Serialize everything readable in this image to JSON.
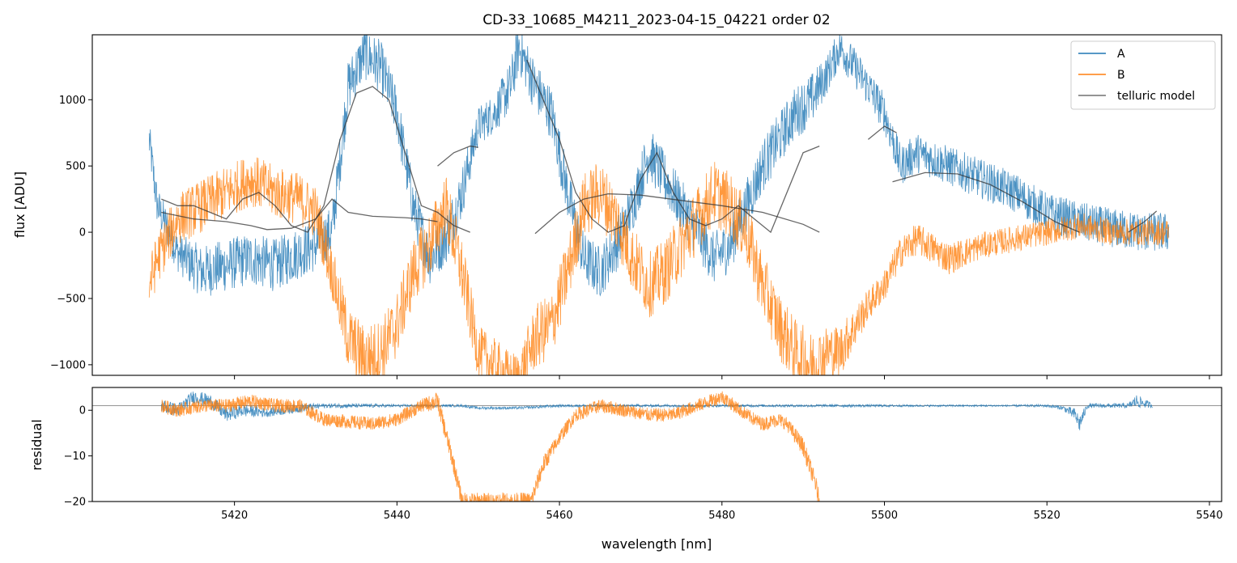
{
  "colors": {
    "A": "#1f77b4",
    "B": "#ff7f0e",
    "telluric": "#333333"
  },
  "chart_data": {
    "type": "line",
    "title": "CD-33_10685_M4211_2023-04-15_04221  order 02",
    "xlabel": "wavelength [nm]",
    "xlim": [
      5402.5,
      5541.5
    ],
    "xticks": [
      5420,
      5440,
      5460,
      5480,
      5500,
      5520,
      5540
    ],
    "legend_position": "top-right",
    "panels": [
      {
        "id": "flux",
        "ylabel": "flux [ADU]",
        "ylim": [
          -1080,
          1490
        ],
        "yticks": [
          1000,
          500,
          0,
          -500,
          -1000
        ],
        "ytick_labels": [
          "1000",
          "500",
          "0",
          "−500",
          "−1000"
        ],
        "series": [
          {
            "name": "A",
            "label": "A",
            "x": [
              5409.5,
              5410.5,
              5413,
              5416,
              5419,
              5422,
              5425,
              5428,
              5430,
              5432,
              5434,
              5436,
              5438,
              5440,
              5442,
              5444,
              5446,
              5448,
              5450,
              5452,
              5454,
              5455,
              5457,
              5459,
              5461,
              5463,
              5465,
              5467,
              5469,
              5471,
              5473,
              5475,
              5477,
              5479,
              5481,
              5483,
              5485,
              5487,
              5489,
              5491,
              5493,
              5494.5,
              5498,
              5500,
              5502,
              5504,
              5508,
              5512,
              5516,
              5520,
              5524,
              5528,
              5532,
              5535
            ],
            "y": [
              700,
              200,
              -150,
              -300,
              -250,
              -200,
              -250,
              -150,
              -100,
              0,
              1100,
              1350,
              1250,
              900,
              200,
              -200,
              -50,
              300,
              800,
              900,
              1100,
              1400,
              1100,
              900,
              300,
              -200,
              -300,
              -100,
              200,
              600,
              400,
              200,
              0,
              -200,
              -100,
              200,
              500,
              700,
              900,
              1000,
              1200,
              1400,
              1100,
              900,
              500,
              600,
              500,
              400,
              300,
              150,
              80,
              30,
              0,
              0
            ],
            "noise": [
              150,
              150,
              150,
              200,
              200,
              200,
              200,
              200,
              200,
              200,
              200,
              200,
              200,
              200,
              200,
              200,
              200,
              200,
              150,
              150,
              200,
              200,
              200,
              200,
              200,
              200,
              200,
              200,
              200,
              200,
              200,
              200,
              200,
              200,
              200,
              200,
              200,
              200,
              200,
              200,
              150,
              150,
              150,
              150,
              150,
              150,
              150,
              150,
              150,
              150,
              150,
              150,
              150,
              150
            ]
          },
          {
            "name": "B",
            "label": "B",
            "x": [
              5409.5,
              5410.5,
              5413,
              5416,
              5419,
              5422,
              5425,
              5428,
              5430,
              5432,
              5434,
              5436,
              5438,
              5440,
              5442,
              5444,
              5446,
              5448,
              5450,
              5452,
              5454,
              5455,
              5457,
              5459,
              5461,
              5463,
              5465,
              5467,
              5469,
              5471,
              5473,
              5475,
              5477,
              5479,
              5481,
              5483,
              5485,
              5487,
              5489,
              5491,
              5493,
              5494.5,
              5498,
              5500,
              5502,
              5504,
              5508,
              5512,
              5516,
              5520,
              5524,
              5528,
              5532,
              5535
            ],
            "y": [
              -400,
              -200,
              100,
              200,
              300,
              400,
              300,
              250,
              150,
              -300,
              -800,
              -950,
              -900,
              -700,
              -300,
              -100,
              200,
              -300,
              -900,
              -1000,
              -1100,
              -1100,
              -800,
              -700,
              -300,
              200,
              300,
              100,
              -200,
              -400,
              -300,
              -100,
              100,
              300,
              200,
              0,
              -400,
              -700,
              -900,
              -1000,
              -900,
              -900,
              -550,
              -400,
              -150,
              -50,
              -200,
              -100,
              -50,
              0,
              50,
              0,
              0,
              0
            ],
            "noise": [
              200,
              200,
              200,
              200,
              200,
              200,
              200,
              200,
              200,
              200,
              250,
              250,
              250,
              250,
              250,
              250,
              250,
              250,
              200,
              200,
              200,
              200,
              250,
              250,
              250,
              250,
              250,
              250,
              250,
              250,
              250,
              250,
              250,
              250,
              250,
              250,
              250,
              250,
              250,
              250,
              200,
              200,
              120,
              120,
              120,
              120,
              120,
              100,
              100,
              100,
              100,
              100,
              100,
              100
            ]
          }
        ],
        "model": {
          "name": "telluric model",
          "label": "telluric model",
          "segments": [
            {
              "x": [
                5411,
                5413,
                5415,
                5417,
                5419,
                5421,
                5423,
                5425,
                5427,
                5429,
                5431,
                5433,
                5435,
                5437,
                5439,
                5441,
                5443,
                5445,
                5447,
                5449
              ],
              "y": [
                250,
                200,
                200,
                150,
                100,
                250,
                300,
                200,
                50,
                0,
                200,
                700,
                1050,
                1100,
                1000,
                600,
                200,
                150,
                50,
                0
              ]
            },
            {
              "x": [
                5411,
                5415,
                5419,
                5422,
                5424,
                5427,
                5430,
                5432,
                5434,
                5437,
                5441,
                5443,
                5445
              ],
              "y": [
                150,
                100,
                80,
                50,
                20,
                30,
                100,
                250,
                150,
                120,
                110,
                100,
                80
              ]
            },
            {
              "x": [
                5445,
                5447,
                5449,
                5450
              ],
              "y": [
                500,
                600,
                650,
                640
              ]
            },
            {
              "x": [
                5456,
                5458,
                5460,
                5462,
                5464,
                5466,
                5468,
                5470,
                5472,
                5474,
                5476,
                5478,
                5480,
                5482,
                5484,
                5486,
                5488,
                5490,
                5492
              ],
              "y": [
                1300,
                1000,
                700,
                300,
                100,
                0,
                50,
                400,
                600,
                300,
                100,
                50,
                100,
                200,
                100,
                0,
                300,
                600,
                650
              ]
            },
            {
              "x": [
                5457,
                5460,
                5463,
                5466,
                5470,
                5475,
                5480,
                5485,
                5490,
                5492
              ],
              "y": [
                -10,
                150,
                250,
                290,
                280,
                240,
                200,
                150,
                60,
                0
              ]
            },
            {
              "x": [
                5498,
                5500,
                5501.5
              ],
              "y": [
                700,
                800,
                750
              ]
            },
            {
              "x": [
                5501,
                5505,
                5509,
                5513,
                5517,
                5521,
                5524
              ],
              "y": [
                380,
                450,
                440,
                360,
                230,
                80,
                0
              ]
            },
            {
              "x": [
                5530,
                5532,
                5533.5
              ],
              "y": [
                0,
                80,
                160
              ]
            }
          ]
        }
      },
      {
        "id": "residual",
        "ylabel": "residual",
        "ylim": [
          -20,
          5
        ],
        "yticks": [
          0,
          -10,
          -20
        ],
        "ytick_labels": [
          "0",
          "−10",
          "−20"
        ],
        "reference_y": 1,
        "series": [
          {
            "name": "A",
            "x": [
              5411,
              5413,
              5415,
              5417,
              5419,
              5421,
              5424,
              5428,
              5431,
              5434,
              5440,
              5446,
              5448,
              5450,
              5455,
              5460,
              5465,
              5470,
              5475,
              5480,
              5485,
              5490,
              5492.5,
              5498,
              5505,
              5510,
              5515,
              5520,
              5522,
              5523.5,
              5524,
              5525,
              5530,
              5531,
              5533
            ],
            "y": [
              1,
              0,
              3,
              2,
              -1,
              0,
              -0.5,
              0.5,
              1,
              1,
              1,
              1,
              1,
              0.5,
              0.5,
              1,
              1,
              1,
              1,
              1,
              1,
              1,
              1,
              1,
              1,
              1,
              1,
              1,
              0.5,
              -1,
              -3,
              1,
              1,
              2,
              1
            ],
            "noise": [
              1.5,
              1.5,
              1.5,
              1.5,
              1.5,
              1.5,
              1,
              1,
              0.5,
              0.5,
              0.3,
              0.3,
              0.3,
              0.3,
              0.3,
              0.3,
              0.3,
              0.3,
              0.3,
              0.3,
              0.3,
              0.3,
              0.3,
              0.3,
              0.2,
              0.2,
              0.2,
              0.3,
              0.5,
              1.5,
              2,
              0.5,
              0.5,
              1.5,
              0.5
            ]
          },
          {
            "name": "B",
            "x": [
              5411,
              5413,
              5416,
              5419,
              5422,
              5425,
              5428,
              5431,
              5434,
              5437,
              5440,
              5443,
              5445,
              5446,
              5447,
              5448,
              5456.5,
              5458,
              5460,
              5462,
              5465,
              5468,
              5471,
              5474,
              5477,
              5480,
              5483,
              5485,
              5487,
              5488,
              5490,
              5491.5,
              5492
            ],
            "y": [
              1,
              0,
              1,
              1,
              2,
              1,
              1,
              -2,
              -2.5,
              -3,
              -2,
              1,
              2,
              -5,
              -12,
              -20,
              -20,
              -12,
              -6,
              -1,
              1,
              0,
              -1,
              -1,
              1,
              3,
              -1,
              -3,
              -2,
              -3,
              -8,
              -16,
              -20
            ],
            "noise": [
              1.5,
              1.5,
              1.5,
              1.5,
              1.5,
              1.5,
              1.5,
              1.5,
              1.5,
              1.5,
              1.5,
              1.5,
              2,
              2,
              2,
              2,
              2,
              2,
              1.5,
              1.5,
              1.5,
              1.5,
              1.5,
              1.5,
              1.5,
              1.5,
              1.5,
              1.5,
              1.5,
              1.5,
              2,
              2,
              2
            ]
          }
        ]
      }
    ]
  }
}
